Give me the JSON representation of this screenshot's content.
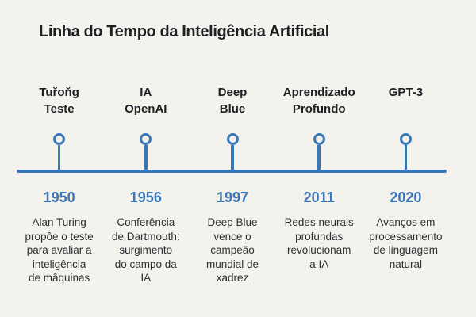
{
  "title": "Linha do Tempo da Inteligência Artificial",
  "colors": {
    "background": "#f4f2ed",
    "accent_blue": "#3b77b7",
    "heading_text": "#1e2024",
    "body_text": "#2d2f32"
  },
  "milestones": [
    {
      "label": "Tuřoňg\nTeste",
      "year": "1950",
      "description": "Alan Turing\npropôe o teste\npara avaliar a\ninteligência\nde mâquinas"
    },
    {
      "label": "IA\nOpenAI",
      "year": "1956",
      "description": "Conferência\nde Dartmouth:\nsurgimento\ndo campo da\nIA"
    },
    {
      "label": "Deep\nBlue",
      "year": "1997",
      "description": "Deep Blue\nvence o\ncampeâo\nmundial de\nxadrez"
    },
    {
      "label": "Aprendizado\nProfundo",
      "year": "2011",
      "description": "Redes neurais\nprofundas\nrevolucionam\na IA"
    },
    {
      "label": "GPT-3",
      "year": "2020",
      "description": "Avanços em\nprocessamento\nde linguagem\nnatural"
    }
  ]
}
